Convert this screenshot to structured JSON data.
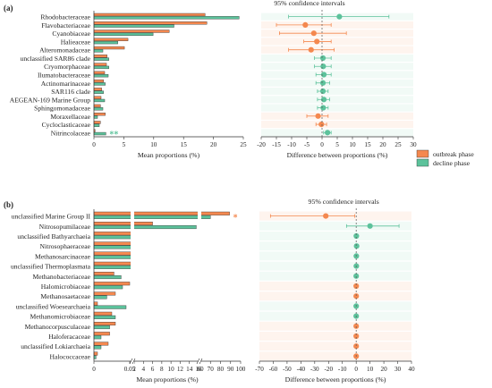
{
  "colors": {
    "outbreak": "#f4884f",
    "decline": "#5cc29b",
    "outbreak_light": "#fde6d9",
    "decline_light": "#dff3ea",
    "axis": "#333333"
  },
  "legend": {
    "outbreak": "outbreak phase",
    "decline": "decline phase"
  },
  "chart_data": [
    {
      "panel": "(a)",
      "type": "bar",
      "xlabel": "Mean proportions (%)",
      "xlim": [
        0,
        25
      ],
      "xticks": [
        "0",
        "5",
        "10",
        "15",
        "20",
        "25"
      ],
      "categories": [
        "Rhodobacteraceae",
        "Flavobacteriaceae",
        "Cyanobiaceae",
        "Halieaceae",
        "Alteromonadaceae",
        "unclassified SAR86 clade",
        "Cryomorphaceae",
        "Ilumatobacteraceae",
        "Actinomarinaceae",
        "SAR116 clade",
        "AEGEAN-169 Marine Group",
        "Sphingomonadaceae",
        "Moraxellaceae",
        "Cycloclasticaceae",
        "Nitrincolaceae"
      ],
      "series": [
        {
          "name": "outbreak phase",
          "values": [
            18.6,
            18.9,
            12.6,
            5.7,
            5.1,
            2.2,
            2.1,
            1.8,
            1.6,
            1.3,
            1.2,
            1.1,
            1.9,
            1.1,
            0.2
          ]
        },
        {
          "name": "decline phase",
          "values": [
            24.3,
            13.4,
            9.9,
            4.0,
            1.5,
            2.5,
            2.5,
            2.4,
            1.9,
            1.6,
            1.8,
            1.5,
            0.6,
            0.9,
            2.0
          ]
        }
      ],
      "significance": {
        "Nitrincolaceae": "**"
      }
    },
    {
      "panel": "(a)",
      "type": "scatter",
      "title": "95% confidence intervals",
      "xlabel": "Difference between proportions (%)",
      "xlim": [
        -20,
        30
      ],
      "xticks": [
        "-20",
        "-15",
        "-10",
        "-5",
        "0",
        "5",
        "10",
        "15",
        "20",
        "25",
        "30"
      ],
      "points": [
        {
          "category": "Rhodobacteraceae",
          "diff": 5.7,
          "ci": [
            -11,
            22
          ],
          "phase": "decline"
        },
        {
          "category": "Flavobacteriaceae",
          "diff": -5.5,
          "ci": [
            -15,
            3
          ],
          "phase": "outbreak"
        },
        {
          "category": "Cyanobiaceae",
          "diff": -2.7,
          "ci": [
            -14,
            8
          ],
          "phase": "outbreak"
        },
        {
          "category": "Halieaceae",
          "diff": -1.7,
          "ci": [
            -6,
            3
          ],
          "phase": "outbreak"
        },
        {
          "category": "Alteromonadaceae",
          "diff": -3.6,
          "ci": [
            -11,
            4
          ],
          "phase": "outbreak"
        },
        {
          "category": "unclassified SAR86 clade",
          "diff": 0.3,
          "ci": [
            -2.5,
            3
          ],
          "phase": "decline"
        },
        {
          "category": "Cryomorphaceae",
          "diff": 0.4,
          "ci": [
            -2.5,
            3
          ],
          "phase": "decline"
        },
        {
          "category": "Ilumatobacteraceae",
          "diff": 0.6,
          "ci": [
            -2,
            3
          ],
          "phase": "decline"
        },
        {
          "category": "Actinomarinaceae",
          "diff": 0.3,
          "ci": [
            -2,
            2.5
          ],
          "phase": "decline"
        },
        {
          "category": "SAR116 clade",
          "diff": 0.3,
          "ci": [
            -1.5,
            2
          ],
          "phase": "decline"
        },
        {
          "category": "AEGEAN-169 Marine Group",
          "diff": 0.6,
          "ci": [
            -1.5,
            2.5
          ],
          "phase": "decline"
        },
        {
          "category": "Sphingomonadaceae",
          "diff": 0.4,
          "ci": [
            -1.5,
            2
          ],
          "phase": "decline"
        },
        {
          "category": "Moraxellaceae",
          "diff": -1.3,
          "ci": [
            -5,
            2
          ],
          "phase": "outbreak"
        },
        {
          "category": "Cycloclasticaceae",
          "diff": -0.2,
          "ci": [
            -2,
            1.5
          ],
          "phase": "outbreak"
        },
        {
          "category": "Nitrincolaceae",
          "diff": 1.8,
          "ci": [
            0.5,
            3
          ],
          "phase": "decline"
        }
      ]
    },
    {
      "panel": "(b)",
      "type": "bar",
      "xlabel": "Mean proportions (%)",
      "broken_axis": true,
      "xticks": [
        "0",
        "0.05",
        "2",
        "4",
        "6",
        "8",
        "10",
        "12",
        "14",
        "16",
        "60",
        "70",
        "80",
        "90",
        "100"
      ],
      "categories": [
        "unclassified Marine Group II",
        "Nitrosopumilaceae",
        "unclassified Bathyarchaeia",
        "Nitrosophaeraceae",
        "Methanosarcinaceae",
        "unclassified Thermoplasmata",
        "Methanobacteriaceae",
        "Halomicrobiaceae",
        "Methanosaetaceae",
        "unclassified Woesearchaeia",
        "Methanomicrobiaceae",
        "Methanocorpusculaceae",
        "Haloferacaceae",
        "unclassified Lokiarchaeia",
        "Halococcaceae"
      ],
      "series": [
        {
          "name": "outbreak phase",
          "values": [
            89,
            6.0,
            0.6,
            0.5,
            0.5,
            0.5,
            0.028,
            0.06,
            0.03,
            0.005,
            0.025,
            0.03,
            0.022,
            0.02,
            0.005
          ]
        },
        {
          "name": "decline phase",
          "values": [
            70,
            15.5,
            0.7,
            0.9,
            0.6,
            0.6,
            0.038,
            0.04,
            0.018,
            0.045,
            0.03,
            0.022,
            0.01,
            0.01,
            0.003
          ]
        }
      ],
      "significance": {
        "unclassified Marine Group II": "*"
      }
    },
    {
      "panel": "(b)",
      "type": "scatter",
      "title": "95% confidence intervals",
      "xlabel": "Difference between proportions (%)",
      "xlim": [
        -70,
        40
      ],
      "xticks": [
        "-70",
        "-60",
        "-50",
        "-40",
        "-30",
        "-20",
        "-10",
        "0",
        "10",
        "20",
        "30",
        "40"
      ],
      "points": [
        {
          "category": "unclassified Marine Group II",
          "diff": -22,
          "ci": [
            -62,
            -1
          ],
          "phase": "outbreak"
        },
        {
          "category": "Nitrosopumilaceae",
          "diff": 10,
          "ci": [
            -7,
            31
          ],
          "phase": "decline"
        },
        {
          "category": "unclassified Bathyarchaeia",
          "diff": 0.1,
          "ci": [
            -1,
            1
          ],
          "phase": "decline"
        },
        {
          "category": "Nitrosophaeraceae",
          "diff": 0.3,
          "ci": [
            -1,
            1.5
          ],
          "phase": "decline"
        },
        {
          "category": "Methanosarcinaceae",
          "diff": 0.1,
          "ci": [
            -1,
            1
          ],
          "phase": "decline"
        },
        {
          "category": "unclassified Thermoplasmata",
          "diff": 0.1,
          "ci": [
            -1,
            1
          ],
          "phase": "decline"
        },
        {
          "category": "Methanobacteriaceae",
          "diff": 0.0,
          "ci": [
            -0.5,
            0.5
          ],
          "phase": "decline"
        },
        {
          "category": "Halomicrobiaceae",
          "diff": 0.0,
          "ci": [
            -0.5,
            0.5
          ],
          "phase": "outbreak"
        },
        {
          "category": "Methanosaetaceae",
          "diff": 0.0,
          "ci": [
            -0.5,
            0.5
          ],
          "phase": "outbreak"
        },
        {
          "category": "unclassified Woesearchaeia",
          "diff": 0.0,
          "ci": [
            -0.5,
            0.5
          ],
          "phase": "decline"
        },
        {
          "category": "Methanomicrobiaceae",
          "diff": 0.0,
          "ci": [
            -0.5,
            0.5
          ],
          "phase": "decline"
        },
        {
          "category": "Methanocorpusculaceae",
          "diff": 0.0,
          "ci": [
            -0.5,
            0.5
          ],
          "phase": "outbreak"
        },
        {
          "category": "Haloferacaceae",
          "diff": 0.0,
          "ci": [
            -0.5,
            0.5
          ],
          "phase": "outbreak"
        },
        {
          "category": "unclassified Lokiarchaeia",
          "diff": 0.0,
          "ci": [
            -0.5,
            0.5
          ],
          "phase": "outbreak"
        },
        {
          "category": "Halococcaceae",
          "diff": 0.0,
          "ci": [
            -0.5,
            0.5
          ],
          "phase": "outbreak"
        }
      ]
    }
  ]
}
